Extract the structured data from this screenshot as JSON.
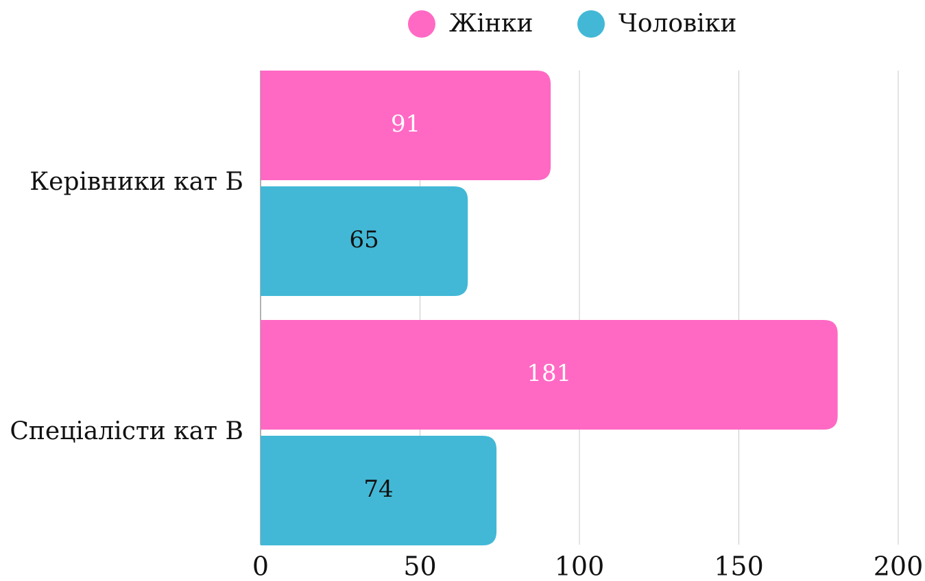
{
  "chart_data": {
    "type": "bar",
    "orientation": "horizontal",
    "categories": [
      "Керівники кат Б",
      "Спеціалісти кат В"
    ],
    "series": [
      {
        "name": "Жінки",
        "color": "#ff69c4",
        "label_color": "#ffffff",
        "values": [
          91,
          181
        ]
      },
      {
        "name": "Чоловіки",
        "color": "#42b8d6",
        "label_color": "#111111",
        "values": [
          65,
          74
        ]
      }
    ],
    "xlim": [
      0,
      200
    ],
    "xticks": [
      0,
      50,
      100,
      150,
      200
    ],
    "grid": true,
    "legend": "top"
  }
}
